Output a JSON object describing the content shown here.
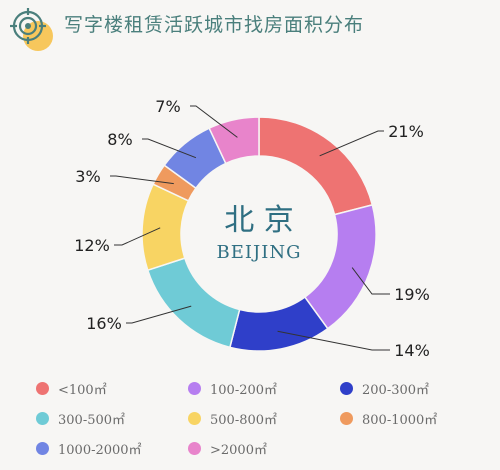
{
  "header": {
    "title": "写字楼租赁活跃城市找房面积分布"
  },
  "chart_data": {
    "type": "pie",
    "donut": true,
    "center_title": "北 京",
    "center_subtitle": "BEIJING",
    "categories": [
      "<100㎡",
      "100-200㎡",
      "200-300㎡",
      "300-500㎡",
      "500-800㎡",
      "800-1000㎡",
      "1000-2000㎡",
      ">2000㎡"
    ],
    "values": [
      21,
      19,
      14,
      16,
      12,
      3,
      8,
      7
    ],
    "value_labels": [
      "21%",
      "19%",
      "14%",
      "16%",
      "12%",
      "3%",
      "8%",
      "7%"
    ],
    "colors": [
      "#ee7372",
      "#b67ef0",
      "#2f3fc9",
      "#6fcbd6",
      "#f8d463",
      "#ef9a5e",
      "#7185e3",
      "#e884cb"
    ],
    "legend_position": "bottom",
    "order": [
      "<100㎡",
      "100-200㎡",
      "200-300㎡",
      "300-500㎡",
      "500-800㎡",
      "800-1000㎡",
      "1000-2000㎡",
      ">2000㎡"
    ]
  }
}
